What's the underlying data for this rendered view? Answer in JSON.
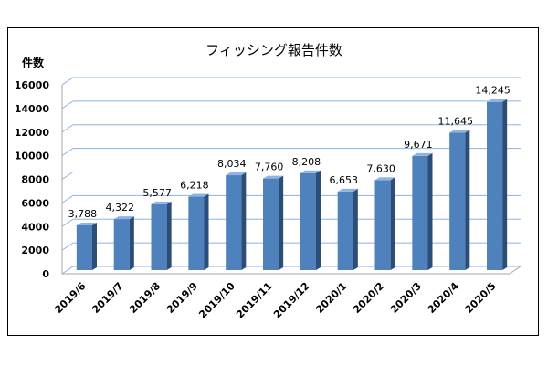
{
  "chart_data": {
    "type": "bar",
    "title": "フィッシング報告件数",
    "ylabel": "件数",
    "xlabel": "",
    "categories": [
      "2019/6",
      "2019/7",
      "2019/8",
      "2019/9",
      "2019/10",
      "2019/11",
      "2019/12",
      "2020/1",
      "2020/2",
      "2020/3",
      "2020/4",
      "2020/5"
    ],
    "values": [
      3788,
      4322,
      5577,
      6218,
      8034,
      7760,
      8208,
      6653,
      7630,
      9671,
      11645,
      14245
    ],
    "data_labels": [
      "3,788",
      "4,322",
      "5,577",
      "6,218",
      "8,034",
      "7,760",
      "8,208",
      "6,653",
      "7,630",
      "9,671",
      "11,645",
      "14,245"
    ],
    "ylim": [
      0,
      16000
    ],
    "yticks": [
      0,
      2000,
      4000,
      6000,
      8000,
      10000,
      12000,
      14000,
      16000
    ],
    "grid": true,
    "legend": "none",
    "bar_color": "#4f81bd",
    "bar_side_color": "#2c4d75",
    "bar_top_color": "#8eb4e3",
    "grid_color": "#8db3e2"
  }
}
